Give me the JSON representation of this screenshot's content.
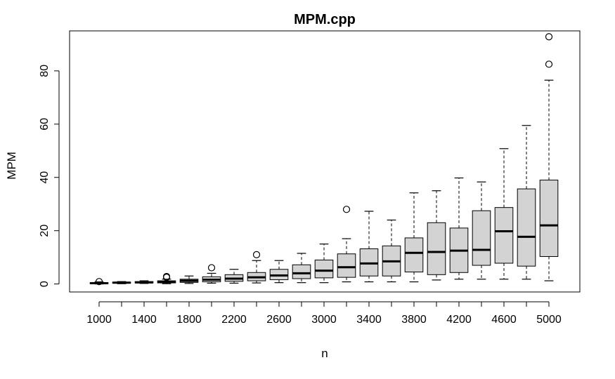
{
  "chart_data": {
    "type": "boxplot",
    "title": "MPM.cpp",
    "xlabel": "n",
    "ylabel": "MPM",
    "ylim": [
      -3,
      95
    ],
    "y_ticks": [
      0,
      20,
      40,
      60,
      80
    ],
    "x_tick_labels_shown": [
      "1000",
      "1400",
      "1800",
      "2200",
      "2600",
      "3000",
      "3400",
      "3800",
      "4200",
      "4600",
      "5000"
    ],
    "grid": false,
    "box_fill": "#d3d3d3",
    "categories": [
      "1000",
      "1200",
      "1400",
      "1600",
      "1800",
      "2000",
      "2200",
      "2400",
      "2600",
      "2800",
      "3000",
      "3200",
      "3400",
      "3600",
      "3800",
      "4000",
      "4200",
      "4400",
      "4600",
      "4800",
      "5000"
    ],
    "boxes": [
      {
        "n": "1000",
        "low": 0.0,
        "q1": 0.1,
        "median": 0.3,
        "q3": 0.5,
        "high": 0.8,
        "outliers": [
          0.9
        ]
      },
      {
        "n": "1200",
        "low": 0.1,
        "q1": 0.3,
        "median": 0.5,
        "q3": 0.7,
        "high": 0.9,
        "outliers": []
      },
      {
        "n": "1400",
        "low": 0.2,
        "q1": 0.4,
        "median": 0.6,
        "q3": 0.9,
        "high": 1.2,
        "outliers": []
      },
      {
        "n": "1600",
        "low": 0.1,
        "q1": 0.4,
        "median": 0.7,
        "q3": 1.2,
        "high": 1.8,
        "outliers": [
          2.5,
          2.8
        ]
      },
      {
        "n": "1800",
        "low": 0.2,
        "q1": 0.6,
        "median": 1.2,
        "q3": 1.8,
        "high": 3.0,
        "outliers": []
      },
      {
        "n": "2000",
        "low": 0.3,
        "q1": 0.8,
        "median": 1.6,
        "q3": 2.7,
        "high": 4.0,
        "outliers": [
          6.1
        ]
      },
      {
        "n": "2200",
        "low": 0.3,
        "q1": 1.0,
        "median": 2.0,
        "q3": 3.5,
        "high": 5.5,
        "outliers": []
      },
      {
        "n": "2400",
        "low": 0.4,
        "q1": 1.2,
        "median": 2.5,
        "q3": 4.3,
        "high": 8.8,
        "outliers": [
          11.0
        ]
      },
      {
        "n": "2600",
        "low": 0.5,
        "q1": 1.6,
        "median": 3.2,
        "q3": 5.5,
        "high": 8.8,
        "outliers": []
      },
      {
        "n": "2800",
        "low": 0.5,
        "q1": 2.0,
        "median": 4.0,
        "q3": 7.2,
        "high": 11.5,
        "outliers": []
      },
      {
        "n": "3000",
        "low": 0.5,
        "q1": 2.3,
        "median": 5.0,
        "q3": 9.0,
        "high": 15.0,
        "outliers": []
      },
      {
        "n": "3200",
        "low": 0.8,
        "q1": 2.5,
        "median": 6.3,
        "q3": 11.3,
        "high": 17.0,
        "outliers": [
          28.0
        ]
      },
      {
        "n": "3400",
        "low": 0.8,
        "q1": 3.0,
        "median": 7.7,
        "q3": 13.2,
        "high": 27.3,
        "outliers": []
      },
      {
        "n": "3600",
        "low": 0.8,
        "q1": 3.0,
        "median": 8.5,
        "q3": 14.3,
        "high": 24.0,
        "outliers": []
      },
      {
        "n": "3800",
        "low": 0.8,
        "q1": 4.5,
        "median": 11.7,
        "q3": 17.3,
        "high": 34.2,
        "outliers": []
      },
      {
        "n": "4000",
        "low": 1.5,
        "q1": 3.5,
        "median": 12.0,
        "q3": 23.0,
        "high": 35.0,
        "outliers": []
      },
      {
        "n": "4200",
        "low": 1.8,
        "q1": 4.3,
        "median": 12.5,
        "q3": 21.0,
        "high": 39.8,
        "outliers": []
      },
      {
        "n": "4400",
        "low": 1.8,
        "q1": 7.0,
        "median": 12.8,
        "q3": 27.5,
        "high": 38.3,
        "outliers": []
      },
      {
        "n": "4600",
        "low": 1.8,
        "q1": 7.8,
        "median": 19.8,
        "q3": 28.7,
        "high": 50.8,
        "outliers": []
      },
      {
        "n": "4800",
        "low": 1.8,
        "q1": 6.7,
        "median": 17.7,
        "q3": 35.7,
        "high": 59.5,
        "outliers": []
      },
      {
        "n": "5000",
        "low": 1.2,
        "q1": 10.3,
        "median": 22.0,
        "q3": 39.0,
        "high": 76.5,
        "outliers": [
          82.5,
          92.8
        ]
      }
    ]
  }
}
